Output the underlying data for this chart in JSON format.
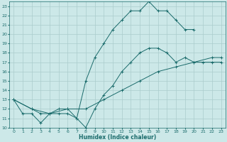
{
  "xlabel": "Humidex (Indice chaleur)",
  "bg_color": "#cce8e8",
  "grid_color": "#aacccc",
  "line_color": "#1a6b6b",
  "xlim": [
    -0.5,
    23.5
  ],
  "ylim": [
    10,
    23.5
  ],
  "xticks": [
    0,
    1,
    2,
    3,
    4,
    5,
    6,
    7,
    8,
    9,
    10,
    11,
    12,
    13,
    14,
    15,
    16,
    17,
    18,
    19,
    20,
    21,
    22,
    23
  ],
  "yticks": [
    10,
    11,
    12,
    13,
    14,
    15,
    16,
    17,
    18,
    19,
    20,
    21,
    22,
    23
  ],
  "line1_x": [
    0,
    1,
    2,
    3,
    4,
    5,
    6,
    7,
    8,
    9,
    10,
    11,
    12,
    13,
    14,
    15,
    16,
    17,
    18,
    19,
    20
  ],
  "line1_y": [
    13,
    11.5,
    11.5,
    10.5,
    11.5,
    11.5,
    11.5,
    11,
    15,
    17.5,
    19,
    20.5,
    21.5,
    22.5,
    22.5,
    23.5,
    22.5,
    22.5,
    21.5,
    20.5,
    20.5
  ],
  "line2_x": [
    0,
    2,
    3,
    4,
    5,
    6,
    7,
    8,
    9,
    10,
    11,
    12,
    13,
    14,
    15,
    16,
    17,
    18,
    19,
    20,
    21,
    22,
    23
  ],
  "line2_y": [
    13,
    12,
    11.5,
    11.5,
    12,
    12,
    11,
    10,
    12,
    13.5,
    14.5,
    16,
    17,
    18,
    18.5,
    18.5,
    18,
    17,
    17.5,
    17,
    17,
    17,
    17
  ],
  "line3_x": [
    0,
    2,
    4,
    6,
    8,
    10,
    12,
    14,
    16,
    18,
    20,
    22,
    23
  ],
  "line3_y": [
    13,
    12,
    11.5,
    12,
    12,
    13,
    14,
    15,
    16,
    16.5,
    17,
    17.5,
    17.5
  ]
}
